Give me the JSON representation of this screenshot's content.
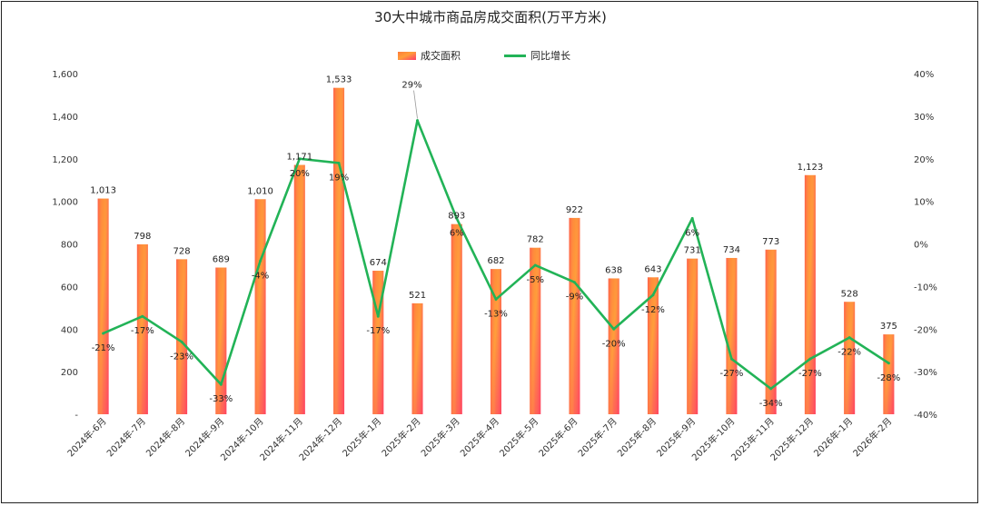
{
  "chart_data": {
    "type": "bar",
    "title": "30大中城市商品房成交面积(万平方米)",
    "categories": [
      "2024年-6月",
      "2024年-7月",
      "2024年-8月",
      "2024年-9月",
      "2024年-10月",
      "2024年-11月",
      "2024年-12月",
      "2025年-1月",
      "2025年-2月",
      "2025年-3月",
      "2025年-4月",
      "2025年-5月",
      "2025年-6月",
      "2025年-7月",
      "2025年-8月",
      "2025年-9月",
      "2025年-10月",
      "2025年-11月",
      "2025年-12月",
      "2026年-1月",
      "2026年-2月"
    ],
    "series": [
      {
        "name": "成交面积",
        "type": "bar",
        "axis": "left",
        "values": [
          1013,
          798,
          728,
          689,
          1010,
          1171,
          1533,
          674,
          521,
          893,
          682,
          782,
          922,
          638,
          643,
          731,
          734,
          773,
          1123,
          528,
          375
        ],
        "labels": [
          "1,013",
          "798",
          "728",
          "689",
          "1,010",
          "1,171",
          "1,533",
          "674",
          "521",
          "893",
          "682",
          "782",
          "922",
          "638",
          "643",
          "731",
          "734",
          "773",
          "1,123",
          "528",
          "375"
        ]
      },
      {
        "name": "同比增长",
        "type": "line",
        "axis": "right",
        "values": [
          -21,
          -17,
          -23,
          -33,
          -4,
          20,
          19,
          -17,
          29,
          6,
          -13,
          -5,
          -9,
          -20,
          -12,
          6,
          -27,
          -34,
          -27,
          -22,
          -28
        ],
        "labels": [
          "-21%",
          "-17%",
          "-23%",
          "-33%",
          "-4%",
          "20%",
          "19%",
          "-17%",
          "29%",
          "6%",
          "-13%",
          "-5%",
          "-9%",
          "-20%",
          "-12%",
          "6%",
          "-27%",
          "-34%",
          "-27%",
          "-22%",
          "-28%"
        ]
      }
    ],
    "y_left": {
      "ticks": [
        "-",
        "200",
        "400",
        "600",
        "800",
        "1,000",
        "1,200",
        "1,400",
        "1,600"
      ],
      "range": [
        0,
        1600
      ]
    },
    "y_right": {
      "ticks": [
        "-40%",
        "-30%",
        "-20%",
        "-10%",
        "0%",
        "10%",
        "20%",
        "30%",
        "40%"
      ],
      "range": [
        -40,
        40
      ]
    },
    "legend_position": "top-center",
    "grid": false,
    "colors": {
      "bar_top": "#ff6a3d",
      "bar_mid": "#ff9a3c",
      "bar_bottom": "#ff3f6c",
      "line": "#22b357"
    }
  }
}
